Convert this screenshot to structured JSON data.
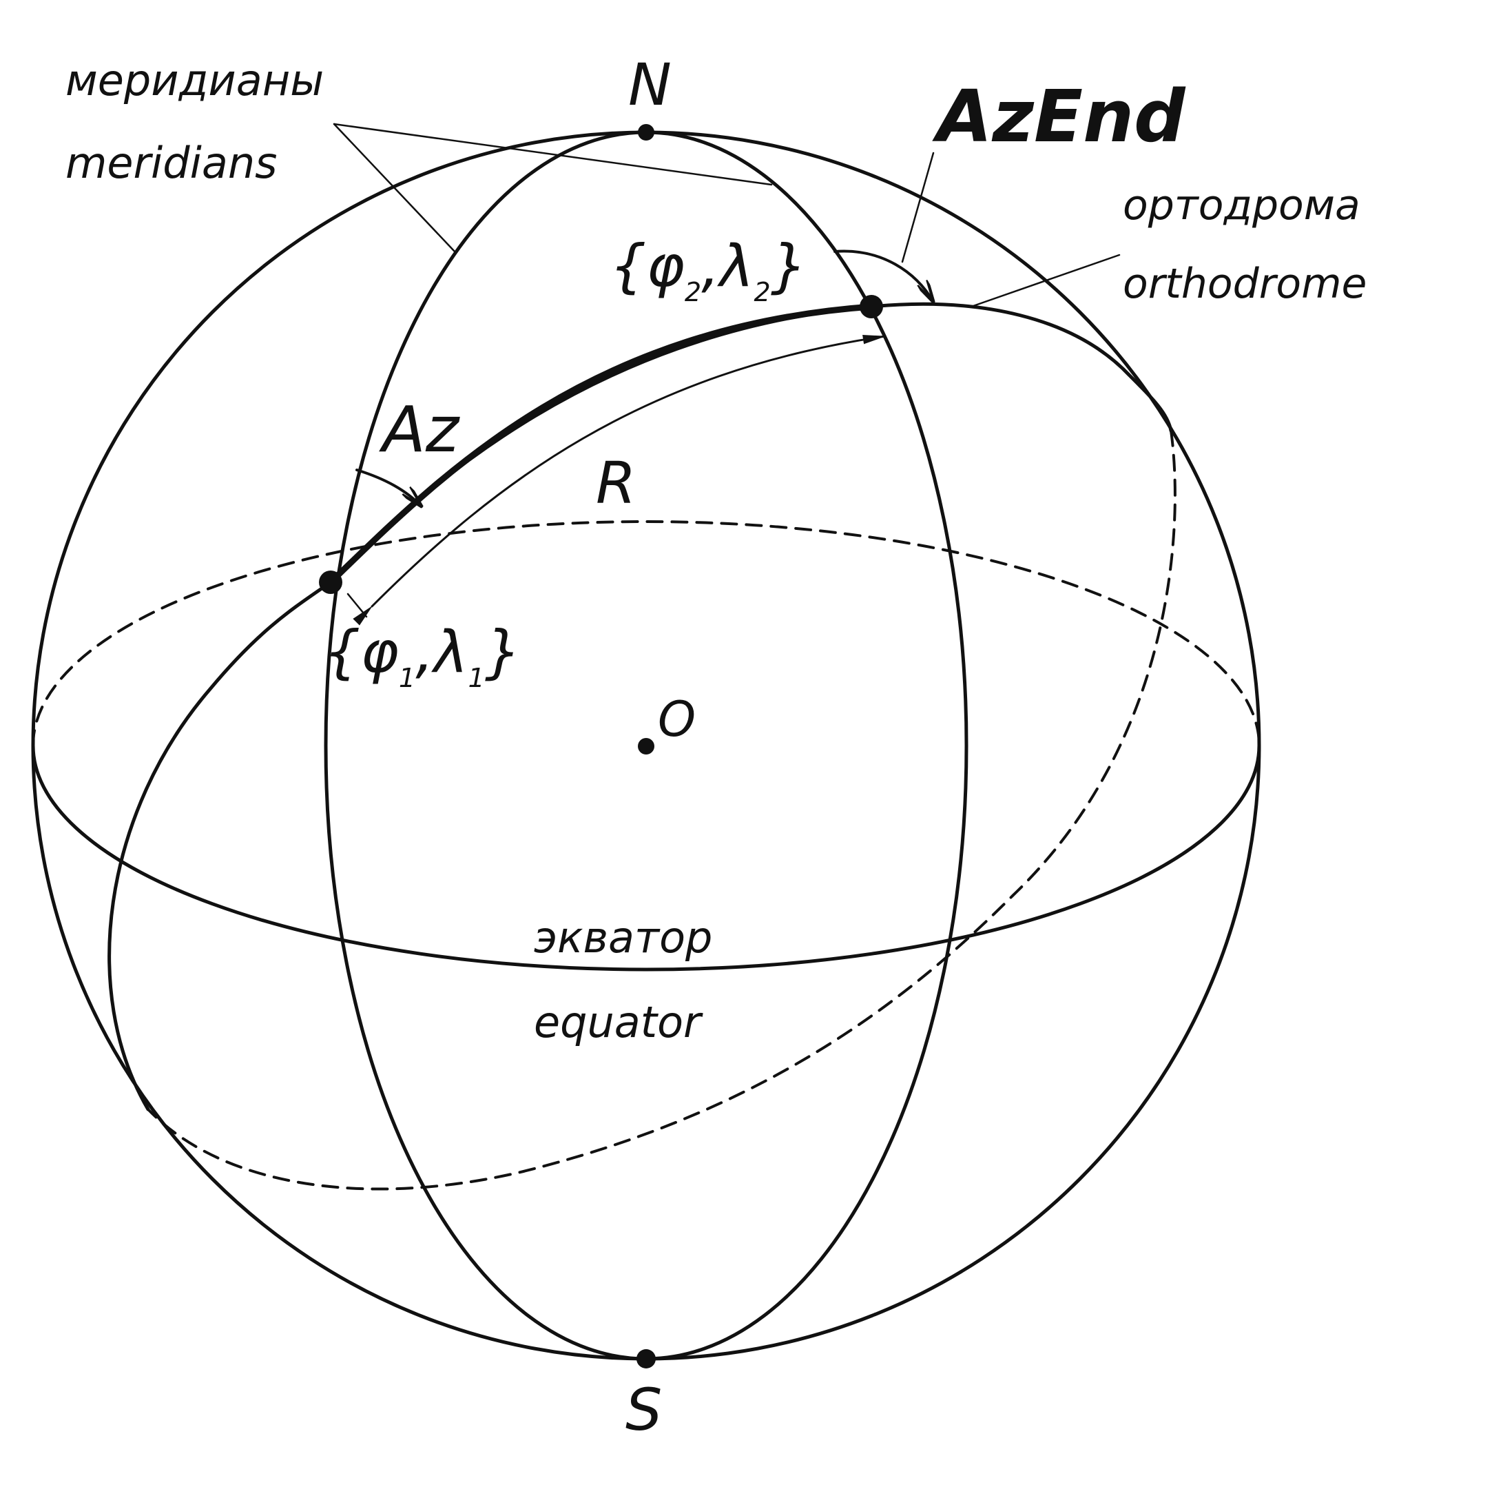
{
  "labels": {
    "north": "N",
    "south": "S",
    "center": "O",
    "radius": "R",
    "azimuth": "Az",
    "azimuth_end": "AzEnd",
    "meridians_ru": "меридианы",
    "meridians_en": "meridians",
    "orthodrome_ru": "ортодрома",
    "orthodrome_en": "orthodrome",
    "equator_ru": "экватор",
    "equator_en": "equator"
  },
  "point1": {
    "phi": "φ",
    "lambda": "λ",
    "index": "1"
  },
  "point2": {
    "phi": "φ",
    "lambda": "λ",
    "index": "2"
  },
  "brace_open": "{",
  "brace_close": "}",
  "comma": ",",
  "colors": {
    "ink": "#111111",
    "background": "#ffffff"
  }
}
